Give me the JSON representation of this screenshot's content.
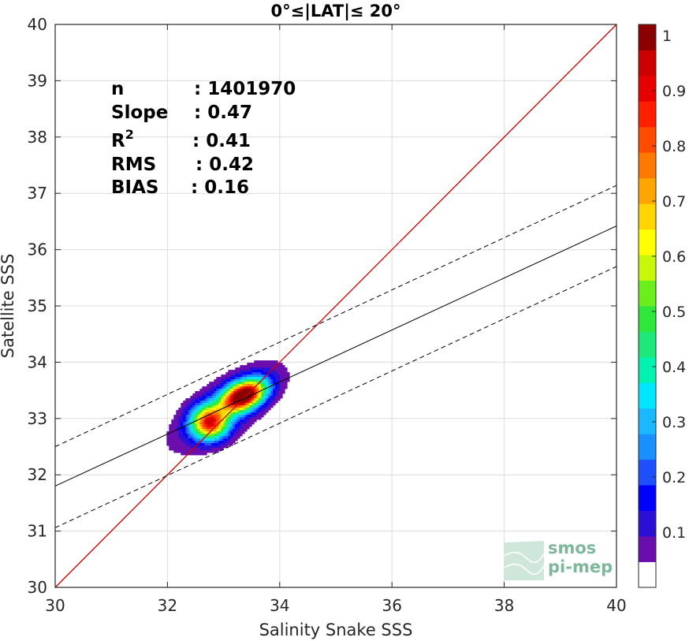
{
  "chart_data": {
    "type": "scatter",
    "title": "0°≤|LAT|≤ 20°",
    "xlabel": "Salinity Snake SSS",
    "ylabel": "Satellite SSS",
    "xlim": [
      30,
      40
    ],
    "ylim": [
      30,
      40
    ],
    "xticks": [
      "30",
      "32",
      "34",
      "36",
      "38",
      "40"
    ],
    "yticks": [
      "30",
      "31",
      "32",
      "33",
      "34",
      "35",
      "36",
      "37",
      "38",
      "39",
      "40"
    ],
    "grid": true,
    "stats": [
      {
        "label": "n",
        "value": ": 1401970"
      },
      {
        "label": "Slope",
        "value": ": 0.47"
      },
      {
        "label": "R",
        "sup": "2",
        "value": ": 0.41"
      },
      {
        "label": "RMS",
        "value": ": 0.42"
      },
      {
        "label": "BIAS",
        "value": ": 0.16"
      }
    ],
    "lines": [
      {
        "name": "identity",
        "color": "#cc0000",
        "style": "solid",
        "points": [
          [
            30,
            30
          ],
          [
            40,
            40
          ]
        ]
      },
      {
        "name": "fit",
        "color": "#000000",
        "style": "solid",
        "points": [
          [
            30,
            31.8
          ],
          [
            40,
            36.42
          ]
        ]
      },
      {
        "name": "fit-upper",
        "color": "#000000",
        "style": "dashed",
        "points": [
          [
            30,
            32.5
          ],
          [
            40,
            37.14
          ]
        ]
      },
      {
        "name": "fit-lower",
        "color": "#000000",
        "style": "dashed",
        "points": [
          [
            30,
            31.06
          ],
          [
            40,
            35.7
          ]
        ]
      }
    ],
    "density_peaks": [
      {
        "x": 33.35,
        "y": 33.4,
        "sx": 0.28,
        "sy": 0.16,
        "amp": 1.0,
        "angle": 25
      },
      {
        "x": 32.75,
        "y": 32.92,
        "sx": 0.22,
        "sy": 0.2,
        "amp": 0.74,
        "angle": 0
      }
    ],
    "density_envelope": {
      "center_x": 33.05,
      "center_y": 33.2,
      "level": 0.05
    },
    "colorbar": {
      "ticks": [
        "1",
        "0.9",
        "0.8",
        "0.7",
        "0.6",
        "0.5",
        "0.4",
        "0.3",
        "0.2",
        "0.1"
      ],
      "range": [
        0.05,
        1.0
      ],
      "colors": [
        "#ffffff",
        "#6a0dad",
        "#2b0fd6",
        "#0000ff",
        "#1e50ff",
        "#1a90ff",
        "#1ab9ff",
        "#00e6ff",
        "#00f2b0",
        "#1ee87a",
        "#2de83a",
        "#6aee1c",
        "#c8f70a",
        "#ffff00",
        "#ffd400",
        "#ffa500",
        "#ff7800",
        "#ff4b00",
        "#ff1e00",
        "#e80000",
        "#cc0000",
        "#8b0000"
      ]
    },
    "watermark": [
      "smos",
      "pi-mep"
    ]
  }
}
